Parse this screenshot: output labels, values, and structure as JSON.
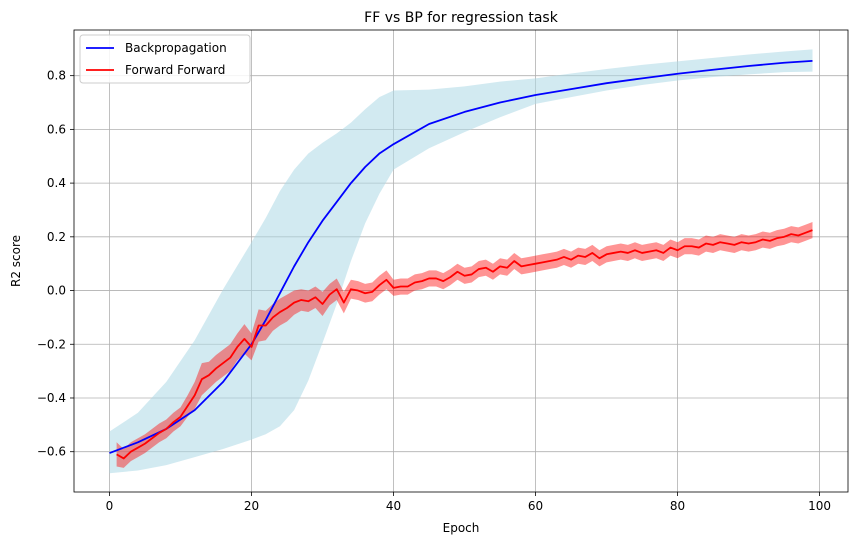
{
  "chart_data": {
    "type": "line",
    "title": "FF vs BP for regression task",
    "xlabel": "Epoch",
    "ylabel": "R2 score",
    "xlim": [
      -5,
      104
    ],
    "ylim": [
      -0.75,
      0.97
    ],
    "xticks": [
      0,
      20,
      40,
      60,
      80,
      100
    ],
    "xtick_labels": [
      "0",
      "20",
      "40",
      "60",
      "80",
      "100"
    ],
    "yticks": [
      -0.6,
      -0.4,
      -0.2,
      0.0,
      0.2,
      0.4,
      0.6,
      0.8
    ],
    "ytick_labels": [
      "−0.6",
      "−0.4",
      "−0.2",
      "0.0",
      "0.2",
      "0.4",
      "0.6",
      "0.8"
    ],
    "grid": true,
    "legend_position": "top-left",
    "series": [
      {
        "name": "Backpropagation",
        "color": "#0000ff",
        "band_color": "#add8e6",
        "x": [
          0,
          4,
          8,
          12,
          16,
          20,
          22,
          24,
          26,
          28,
          30,
          32,
          34,
          36,
          38,
          40,
          45,
          50,
          55,
          60,
          65,
          70,
          75,
          80,
          85,
          90,
          95,
          99
        ],
        "mean": [
          -0.605,
          -0.565,
          -0.515,
          -0.445,
          -0.34,
          -0.2,
          -0.11,
          -0.01,
          0.09,
          0.18,
          0.26,
          0.33,
          0.4,
          0.46,
          0.51,
          0.545,
          0.62,
          0.665,
          0.7,
          0.728,
          0.75,
          0.772,
          0.79,
          0.807,
          0.822,
          0.836,
          0.848,
          0.855
        ],
        "lower": [
          -0.68,
          -0.67,
          -0.65,
          -0.62,
          -0.59,
          -0.555,
          -0.535,
          -0.505,
          -0.445,
          -0.335,
          -0.195,
          -0.05,
          0.11,
          0.25,
          0.36,
          0.45,
          0.53,
          0.59,
          0.645,
          0.695,
          0.72,
          0.745,
          0.765,
          0.782,
          0.795,
          0.805,
          0.813,
          0.815
        ],
        "upper": [
          -0.525,
          -0.455,
          -0.34,
          -0.185,
          0.005,
          0.18,
          0.27,
          0.37,
          0.45,
          0.51,
          0.55,
          0.585,
          0.625,
          0.675,
          0.72,
          0.745,
          0.748,
          0.76,
          0.778,
          0.79,
          0.808,
          0.825,
          0.84,
          0.853,
          0.866,
          0.879,
          0.89,
          0.898
        ]
      },
      {
        "name": "Forward Forward",
        "color": "#ff0000",
        "band_color": "#ff0000",
        "x": [
          1,
          2,
          3,
          4,
          5,
          6,
          7,
          8,
          9,
          10,
          11,
          12,
          13,
          14,
          15,
          16,
          17,
          18,
          19,
          20,
          21,
          22,
          23,
          24,
          25,
          26,
          27,
          28,
          29,
          30,
          31,
          32,
          33,
          34,
          35,
          36,
          37,
          38,
          39,
          40,
          41,
          42,
          43,
          44,
          45,
          46,
          47,
          48,
          49,
          50,
          51,
          52,
          53,
          54,
          55,
          56,
          57,
          58,
          59,
          60,
          61,
          62,
          63,
          64,
          65,
          66,
          67,
          68,
          69,
          70,
          71,
          72,
          73,
          74,
          75,
          76,
          77,
          78,
          79,
          80,
          81,
          82,
          83,
          84,
          85,
          86,
          87,
          88,
          89,
          90,
          91,
          92,
          93,
          94,
          95,
          96,
          97,
          98,
          99
        ],
        "mean": [
          -0.61,
          -0.625,
          -0.6,
          -0.585,
          -0.57,
          -0.55,
          -0.53,
          -0.515,
          -0.49,
          -0.47,
          -0.43,
          -0.39,
          -0.33,
          -0.315,
          -0.29,
          -0.27,
          -0.25,
          -0.21,
          -0.18,
          -0.21,
          -0.13,
          -0.13,
          -0.1,
          -0.08,
          -0.065,
          -0.045,
          -0.035,
          -0.04,
          -0.025,
          -0.05,
          -0.015,
          0.005,
          -0.045,
          0.005,
          0.0,
          -0.01,
          -0.005,
          0.02,
          0.04,
          0.01,
          0.015,
          0.015,
          0.03,
          0.035,
          0.045,
          0.045,
          0.035,
          0.05,
          0.07,
          0.055,
          0.06,
          0.08,
          0.085,
          0.07,
          0.09,
          0.085,
          0.11,
          0.09,
          0.095,
          0.1,
          0.105,
          0.11,
          0.115,
          0.125,
          0.115,
          0.13,
          0.125,
          0.14,
          0.12,
          0.135,
          0.14,
          0.145,
          0.14,
          0.15,
          0.14,
          0.145,
          0.15,
          0.14,
          0.16,
          0.15,
          0.165,
          0.165,
          0.16,
          0.175,
          0.17,
          0.18,
          0.175,
          0.17,
          0.18,
          0.175,
          0.18,
          0.19,
          0.185,
          0.195,
          0.2,
          0.21,
          0.205,
          0.215,
          0.225
        ],
        "lower": [
          -0.655,
          -0.66,
          -0.635,
          -0.62,
          -0.605,
          -0.585,
          -0.565,
          -0.55,
          -0.525,
          -0.505,
          -0.47,
          -0.44,
          -0.39,
          -0.365,
          -0.34,
          -0.32,
          -0.3,
          -0.26,
          -0.235,
          -0.26,
          -0.19,
          -0.185,
          -0.15,
          -0.13,
          -0.115,
          -0.09,
          -0.075,
          -0.08,
          -0.065,
          -0.095,
          -0.055,
          -0.035,
          -0.085,
          -0.03,
          -0.035,
          -0.045,
          -0.04,
          -0.015,
          0.005,
          -0.02,
          -0.015,
          -0.015,
          0.0,
          0.005,
          0.015,
          0.015,
          0.005,
          0.02,
          0.04,
          0.025,
          0.03,
          0.05,
          0.055,
          0.04,
          0.06,
          0.055,
          0.08,
          0.06,
          0.065,
          0.07,
          0.075,
          0.08,
          0.085,
          0.095,
          0.085,
          0.1,
          0.095,
          0.11,
          0.09,
          0.105,
          0.11,
          0.115,
          0.11,
          0.12,
          0.11,
          0.115,
          0.12,
          0.11,
          0.13,
          0.12,
          0.135,
          0.135,
          0.13,
          0.145,
          0.14,
          0.15,
          0.145,
          0.14,
          0.15,
          0.145,
          0.15,
          0.16,
          0.155,
          0.165,
          0.17,
          0.18,
          0.175,
          0.185,
          0.195
        ],
        "upper": [
          -0.565,
          -0.59,
          -0.565,
          -0.55,
          -0.535,
          -0.515,
          -0.495,
          -0.48,
          -0.455,
          -0.435,
          -0.39,
          -0.34,
          -0.27,
          -0.265,
          -0.24,
          -0.22,
          -0.2,
          -0.16,
          -0.125,
          -0.16,
          -0.07,
          -0.075,
          -0.05,
          -0.03,
          -0.015,
          0.0,
          0.005,
          0.0,
          0.015,
          -0.005,
          0.025,
          0.045,
          -0.005,
          0.04,
          0.035,
          0.025,
          0.03,
          0.055,
          0.075,
          0.04,
          0.045,
          0.045,
          0.06,
          0.065,
          0.075,
          0.075,
          0.065,
          0.08,
          0.1,
          0.085,
          0.09,
          0.11,
          0.115,
          0.1,
          0.12,
          0.115,
          0.14,
          0.12,
          0.125,
          0.13,
          0.135,
          0.14,
          0.145,
          0.155,
          0.145,
          0.16,
          0.155,
          0.17,
          0.15,
          0.165,
          0.17,
          0.175,
          0.17,
          0.18,
          0.17,
          0.175,
          0.18,
          0.17,
          0.19,
          0.18,
          0.195,
          0.195,
          0.19,
          0.205,
          0.2,
          0.21,
          0.205,
          0.2,
          0.21,
          0.205,
          0.21,
          0.22,
          0.215,
          0.225,
          0.23,
          0.24,
          0.235,
          0.245,
          0.255
        ]
      }
    ]
  }
}
